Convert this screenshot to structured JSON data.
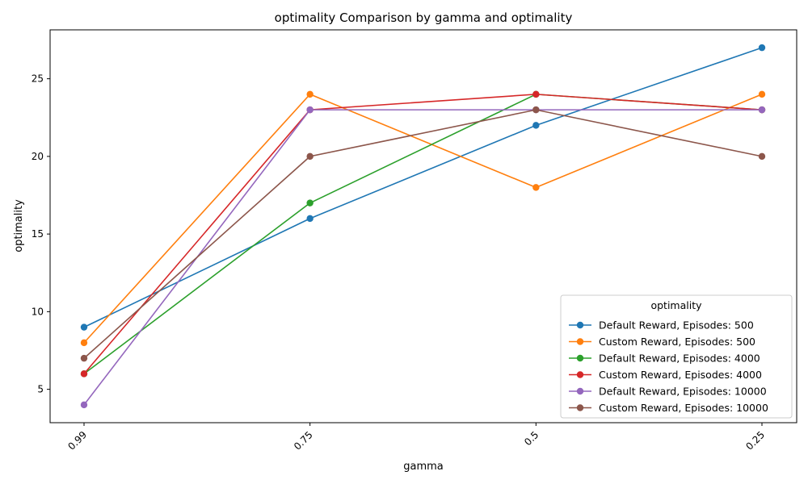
{
  "chart_data": {
    "type": "line",
    "title": "optimality Comparison by gamma and optimality",
    "xlabel": "gamma",
    "ylabel": "optimality",
    "categories": [
      "0.99",
      "0.75",
      "0.5",
      "0.25"
    ],
    "ylim": [
      2.85,
      28.15
    ],
    "yticks": [
      5,
      10,
      15,
      20,
      25
    ],
    "grid": false,
    "legend": {
      "title": "optimality",
      "placement": "lower-right"
    },
    "series": [
      {
        "name": "Default Reward, Episodes: 500",
        "color": "#1f77b4",
        "values": [
          9,
          16,
          22,
          27
        ]
      },
      {
        "name": "Custom Reward, Episodes: 500",
        "color": "#ff7f0e",
        "values": [
          8,
          24,
          18,
          24
        ]
      },
      {
        "name": "Default Reward, Episodes: 4000",
        "color": "#2ca02c",
        "values": [
          6,
          17,
          24,
          23
        ]
      },
      {
        "name": "Custom Reward, Episodes: 4000",
        "color": "#d62728",
        "values": [
          6,
          23,
          24,
          23
        ]
      },
      {
        "name": "Default Reward, Episodes: 10000",
        "color": "#9467bd",
        "values": [
          4,
          23,
          23,
          23
        ]
      },
      {
        "name": "Custom Reward, Episodes: 10000",
        "color": "#8c564b",
        "values": [
          7,
          20,
          23,
          20
        ]
      }
    ]
  }
}
